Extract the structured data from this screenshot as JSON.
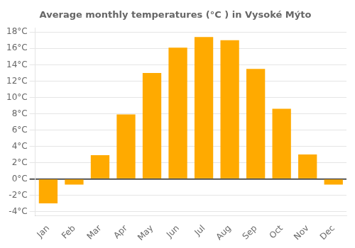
{
  "chart_data": {
    "type": "bar",
    "title": "Average monthly temperatures (°C ) in Vysoké Mýto",
    "categories": [
      "Jan",
      "Feb",
      "Mar",
      "Apr",
      "May",
      "Jun",
      "Jul",
      "Aug",
      "Sep",
      "Oct",
      "Nov",
      "Dec"
    ],
    "values": [
      -3.0,
      -0.7,
      2.9,
      7.9,
      13.0,
      16.1,
      17.4,
      17.0,
      13.5,
      8.6,
      3.0,
      -0.7
    ],
    "color": "#FFAA00",
    "ylim": [
      -4.5,
      18.5
    ],
    "yticks": [
      {
        "value": -4,
        "label": "-4°C"
      },
      {
        "value": -2,
        "label": "-2°C"
      },
      {
        "value": 0,
        "label": "0°C"
      },
      {
        "value": 2,
        "label": "2°C"
      },
      {
        "value": 4,
        "label": "4°C"
      },
      {
        "value": 6,
        "label": "6°C"
      },
      {
        "value": 8,
        "label": "8°C"
      },
      {
        "value": 10,
        "label": "10°C"
      },
      {
        "value": 12,
        "label": "12°C"
      },
      {
        "value": 14,
        "label": "14°C"
      },
      {
        "value": 16,
        "label": "16°C"
      },
      {
        "value": 18,
        "label": "18°C"
      }
    ],
    "grid": true
  }
}
